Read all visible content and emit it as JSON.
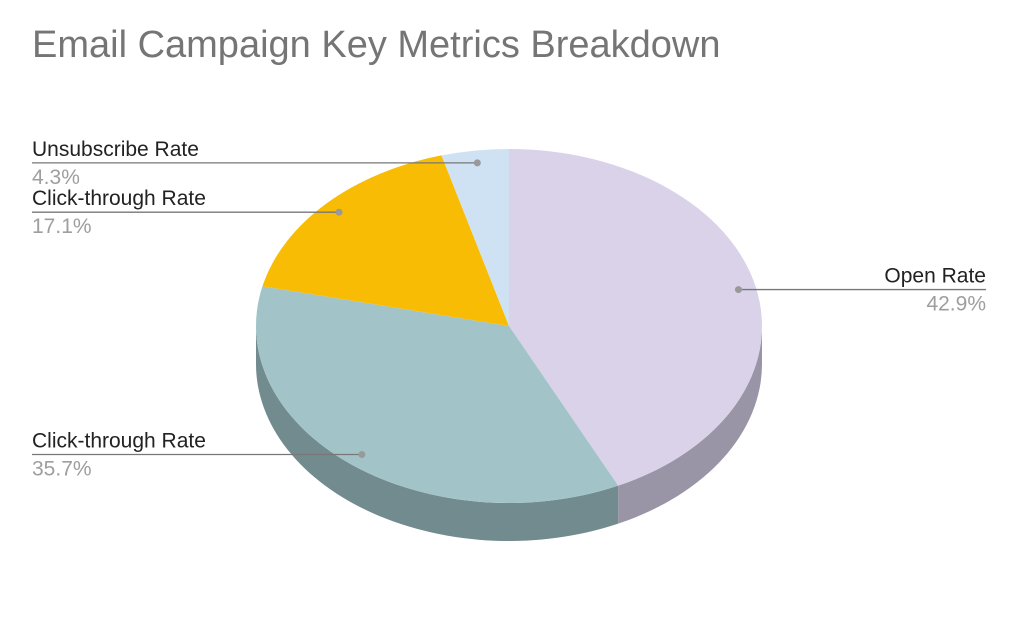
{
  "chart_data": {
    "type": "pie",
    "title": "Email Campaign Key Metrics Breakdown",
    "style": "3d",
    "slices": [
      {
        "label": "Open Rate",
        "value": 42.9,
        "display": "42.9%",
        "color": "#d9d2e9",
        "side_color": "#9a95a6"
      },
      {
        "label": "Click-through Rate",
        "value": 35.7,
        "display": "35.7%",
        "color": "#a2c4c9",
        "side_color": "#718b8e"
      },
      {
        "label": "Click-through Rate",
        "value": 17.1,
        "display": "17.1%",
        "color": "#f9bc05",
        "side_color": "#b08504"
      },
      {
        "label": "Unsubscribe Rate",
        "value": 4.3,
        "display": "4.3%",
        "color": "#cfe2f3",
        "side_color": "#93a0ac"
      }
    ]
  }
}
